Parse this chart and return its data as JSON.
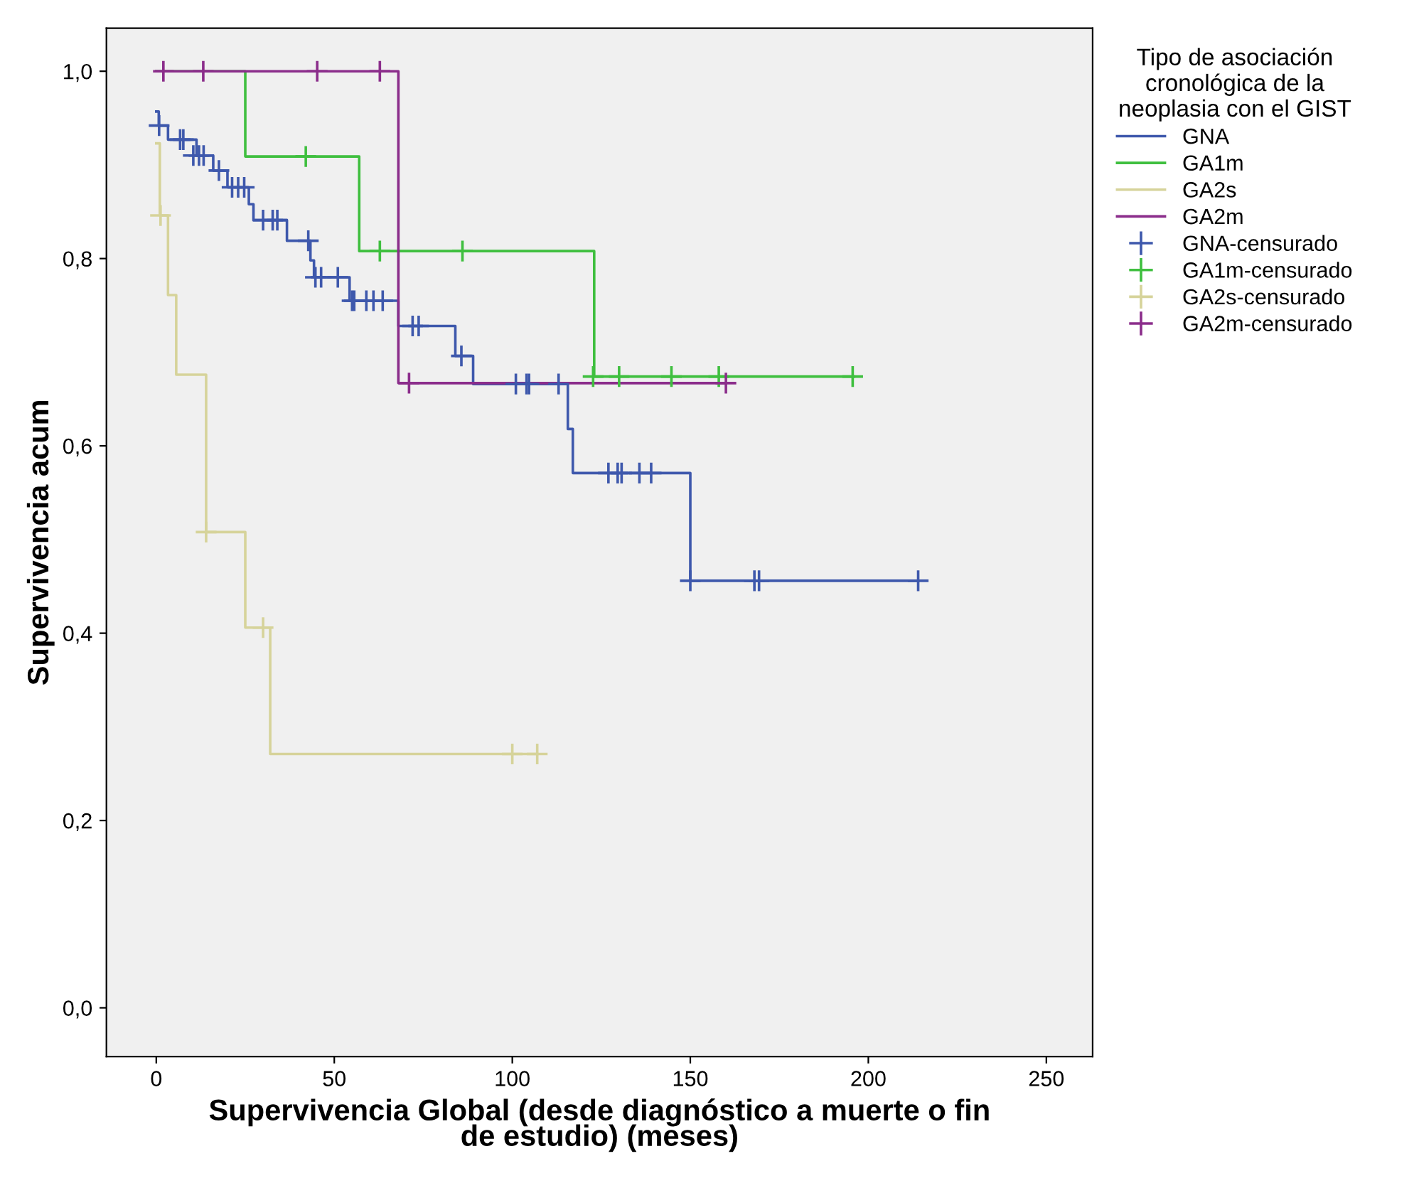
{
  "chart_data": {
    "type": "step",
    "xlabel": "Supervivencia Global (desde diagnóstico a muerte o fin\nde estudio) (meses)",
    "ylabel": "Supervivencia acum",
    "legend_title": "Tipo de asociación\ncronológica de la\nneoplasia con el GIST",
    "legend": "right",
    "grid": false,
    "xlim": [
      -14,
      263
    ],
    "xticks": [
      0,
      50,
      100,
      150,
      200,
      250
    ],
    "ylim": [
      -0.052,
      1.046
    ],
    "yticks": [
      {
        "value": 0,
        "label": "0,0"
      },
      {
        "value": 0.2,
        "label": "0,2"
      },
      {
        "value": 0.4,
        "label": "0,4"
      },
      {
        "value": 0.6,
        "label": "0,6"
      },
      {
        "value": 0.8,
        "label": "0,8"
      },
      {
        "value": 1.0,
        "label": "1,0"
      }
    ],
    "series": [
      {
        "name": "GNA",
        "color": "#3e58ac",
        "x": [
          0,
          0.7,
          3.3,
          11.3,
          16,
          20,
          26,
          27.3,
          36.7,
          43.3,
          44.3,
          54.3,
          68,
          84,
          89,
          115.6,
          117,
          150,
          214
        ],
        "values": [
          0.957,
          0.942,
          0.927,
          0.91,
          0.894,
          0.876,
          0.858,
          0.841,
          0.819,
          0.798,
          0.78,
          0.755,
          0.728,
          0.696,
          0.666,
          0.618,
          0.571,
          0.456,
          0.456
        ]
      },
      {
        "name": "GA1m",
        "color": "#3fbf3f",
        "x": [
          0,
          25,
          57,
          123,
          196
        ],
        "values": [
          1.0,
          0.909,
          0.808,
          0.674,
          0.674
        ]
      },
      {
        "name": "GA2s",
        "color": "#d6d39a",
        "x": [
          0,
          1,
          3.3,
          5.6,
          14,
          25,
          32,
          107
        ],
        "values": [
          0.923,
          0.846,
          0.761,
          0.676,
          0.508,
          0.406,
          0.271,
          0.271
        ]
      },
      {
        "name": "GA2m",
        "color": "#8b2d8b",
        "x": [
          0,
          68,
          160
        ],
        "values": [
          1.0,
          0.667,
          0.667
        ]
      },
      {
        "name": "GNA-censurado",
        "type": "scatter",
        "marker": "cross",
        "color": "#3e58ac",
        "x": [
          0.8,
          6.7,
          7.6,
          10.4,
          12,
          13.3,
          17.6,
          21.3,
          23,
          24.7,
          30,
          32.7,
          34,
          42.7,
          44.7,
          46.3,
          51,
          55,
          55.6,
          59,
          61,
          63.6,
          72,
          73.7,
          85.7,
          101,
          104,
          104.7,
          113,
          127,
          129.6,
          130.7,
          135.7,
          139,
          150,
          168,
          169.3,
          214
        ],
        "values": [
          0.942,
          0.927,
          0.927,
          0.91,
          0.91,
          0.91,
          0.894,
          0.876,
          0.876,
          0.876,
          0.841,
          0.841,
          0.841,
          0.819,
          0.78,
          0.78,
          0.78,
          0.755,
          0.755,
          0.755,
          0.755,
          0.755,
          0.728,
          0.728,
          0.696,
          0.666,
          0.666,
          0.666,
          0.666,
          0.571,
          0.571,
          0.571,
          0.571,
          0.571,
          0.456,
          0.456,
          0.456,
          0.456
        ]
      },
      {
        "name": "GA1m-censurado",
        "type": "scatter",
        "marker": "cross",
        "color": "#3fbf3f",
        "x": [
          42,
          62.8,
          86,
          122.7,
          130,
          144.7,
          158,
          195.6
        ],
        "values": [
          0.909,
          0.808,
          0.808,
          0.674,
          0.674,
          0.674,
          0.674,
          0.674
        ]
      },
      {
        "name": "GA2s-censurado",
        "type": "scatter",
        "marker": "cross",
        "color": "#d6d39a",
        "x": [
          1.2,
          14,
          30,
          100,
          107
        ],
        "values": [
          0.846,
          0.508,
          0.406,
          0.271,
          0.271
        ]
      },
      {
        "name": "GA2m-censurado",
        "type": "scatter",
        "marker": "cross",
        "color": "#8b2d8b",
        "x": [
          2,
          13.2,
          45.2,
          62.8,
          71,
          160
        ],
        "values": [
          1.0,
          1.0,
          1.0,
          1.0,
          0.667,
          0.667
        ]
      }
    ]
  }
}
